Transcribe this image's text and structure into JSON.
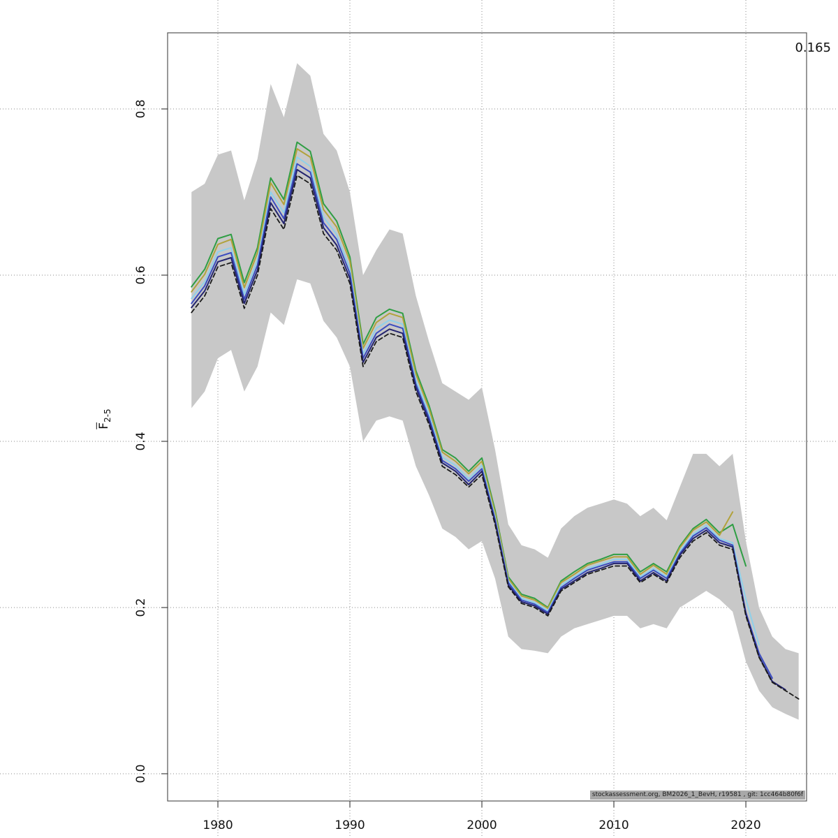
{
  "chart_data": {
    "type": "line",
    "title": "",
    "ylabel_main": "F",
    "ylabel_sub": "2-5",
    "annotation": "0.165",
    "footer": "stockassessment.org, BM2026_1_BevH, r19581 , git: 1cc464b80f6f",
    "grid": true,
    "xlim": [
      1976.19,
      2024.6
    ],
    "ylim": [
      -0.0328,
      0.8916
    ],
    "xticks": [
      1980,
      1990,
      2000,
      2010,
      2020
    ],
    "xtick_labels": [
      "1980",
      "1990",
      "2000",
      "2010",
      "2020"
    ],
    "yticks": [
      0.0,
      0.2,
      0.4,
      0.6,
      0.8
    ],
    "ytick_labels": [
      "0.0",
      "0.2",
      "0.4",
      "0.6",
      "0.8"
    ],
    "x_start_year": 1978,
    "band": {
      "color": "#c8c8c8",
      "start_year": 1978,
      "upper": [
        0.7,
        0.71,
        0.745,
        0.75,
        0.69,
        0.74,
        0.83,
        0.79,
        0.855,
        0.84,
        0.77,
        0.75,
        0.7,
        0.6,
        0.63,
        0.655,
        0.65,
        0.575,
        0.52,
        0.47,
        0.46,
        0.45,
        0.465,
        0.39,
        0.3,
        0.275,
        0.27,
        0.26,
        0.295,
        0.31,
        0.32,
        0.325,
        0.33,
        0.325,
        0.31,
        0.32,
        0.305,
        0.345,
        0.385,
        0.385,
        0.37,
        0.385,
        0.28,
        0.2,
        0.165,
        0.15,
        0.145
      ],
      "lower": [
        0.44,
        0.46,
        0.5,
        0.51,
        0.46,
        0.49,
        0.555,
        0.54,
        0.595,
        0.59,
        0.545,
        0.525,
        0.49,
        0.4,
        0.425,
        0.43,
        0.425,
        0.37,
        0.335,
        0.295,
        0.285,
        0.27,
        0.28,
        0.235,
        0.165,
        0.15,
        0.148,
        0.145,
        0.165,
        0.175,
        0.18,
        0.185,
        0.19,
        0.19,
        0.175,
        0.18,
        0.175,
        0.2,
        0.21,
        0.22,
        0.21,
        0.195,
        0.135,
        0.1,
        0.08,
        0.072,
        0.065
      ]
    },
    "series": [
      {
        "name": "retro-green",
        "color": "#2f9e44",
        "width": 2,
        "dash": "",
        "start_year": 1978,
        "values": [
          0.586,
          0.607,
          0.644,
          0.649,
          0.591,
          0.633,
          0.717,
          0.691,
          0.76,
          0.749,
          0.686,
          0.665,
          0.622,
          0.517,
          0.549,
          0.559,
          0.554,
          0.485,
          0.443,
          0.39,
          0.38,
          0.364,
          0.38,
          0.317,
          0.237,
          0.216,
          0.211,
          0.2,
          0.232,
          0.243,
          0.253,
          0.258,
          0.264,
          0.264,
          0.243,
          0.253,
          0.243,
          0.274,
          0.295,
          0.306,
          0.29,
          0.3,
          0.25
        ]
      },
      {
        "name": "retro-olive",
        "color": "#b2a23c",
        "width": 2,
        "dash": "",
        "start_year": 1978,
        "values": [
          0.58,
          0.601,
          0.637,
          0.643,
          0.585,
          0.627,
          0.711,
          0.685,
          0.752,
          0.742,
          0.679,
          0.658,
          0.617,
          0.512,
          0.543,
          0.554,
          0.549,
          0.481,
          0.439,
          0.387,
          0.376,
          0.361,
          0.376,
          0.314,
          0.235,
          0.214,
          0.209,
          0.199,
          0.23,
          0.24,
          0.251,
          0.256,
          0.261,
          0.261,
          0.24,
          0.251,
          0.24,
          0.272,
          0.293,
          0.303,
          0.287,
          0.315
        ]
      },
      {
        "name": "retro-lightblue",
        "color": "#8fd0ea",
        "width": 2,
        "dash": "",
        "start_year": 1978,
        "values": [
          0.572,
          0.592,
          0.628,
          0.633,
          0.577,
          0.618,
          0.7,
          0.675,
          0.742,
          0.731,
          0.67,
          0.649,
          0.608,
          0.505,
          0.536,
          0.546,
          0.541,
          0.474,
          0.433,
          0.381,
          0.371,
          0.355,
          0.371,
          0.309,
          0.232,
          0.211,
          0.206,
          0.196,
          0.227,
          0.237,
          0.247,
          0.252,
          0.258,
          0.258,
          0.237,
          0.247,
          0.237,
          0.268,
          0.288,
          0.299,
          0.283,
          0.278,
          0.21,
          0.155
        ]
      },
      {
        "name": "retro-blue",
        "color": "#3b4cc0",
        "width": 2,
        "dash": "",
        "start_year": 1978,
        "values": [
          0.566,
          0.587,
          0.622,
          0.627,
          0.571,
          0.612,
          0.694,
          0.668,
          0.734,
          0.724,
          0.663,
          0.643,
          0.602,
          0.5,
          0.53,
          0.541,
          0.536,
          0.469,
          0.428,
          0.377,
          0.367,
          0.352,
          0.367,
          0.306,
          0.23,
          0.209,
          0.204,
          0.194,
          0.224,
          0.235,
          0.245,
          0.25,
          0.255,
          0.255,
          0.235,
          0.245,
          0.235,
          0.265,
          0.286,
          0.296,
          0.281,
          0.275,
          0.194,
          0.145,
          0.115
        ]
      },
      {
        "name": "retro-navy",
        "color": "#24246e",
        "width": 2,
        "dash": "",
        "start_year": 1978,
        "values": [
          0.561,
          0.581,
          0.616,
          0.621,
          0.566,
          0.606,
          0.687,
          0.662,
          0.727,
          0.717,
          0.657,
          0.636,
          0.596,
          0.495,
          0.525,
          0.535,
          0.53,
          0.465,
          0.424,
          0.374,
          0.364,
          0.348,
          0.364,
          0.303,
          0.227,
          0.207,
          0.202,
          0.192,
          0.222,
          0.232,
          0.242,
          0.247,
          0.253,
          0.253,
          0.232,
          0.242,
          0.232,
          0.263,
          0.283,
          0.293,
          0.278,
          0.273,
          0.192,
          0.141,
          0.111,
          0.101
        ]
      },
      {
        "name": "base-run",
        "color": "#1a1a1a",
        "width": 1.8,
        "dash": "6 4",
        "start_year": 1978,
        "values": [
          0.555,
          0.575,
          0.61,
          0.615,
          0.56,
          0.6,
          0.68,
          0.655,
          0.72,
          0.71,
          0.65,
          0.63,
          0.59,
          0.49,
          0.52,
          0.53,
          0.525,
          0.46,
          0.42,
          0.37,
          0.36,
          0.345,
          0.36,
          0.3,
          0.225,
          0.205,
          0.2,
          0.19,
          0.22,
          0.23,
          0.24,
          0.245,
          0.25,
          0.25,
          0.23,
          0.24,
          0.23,
          0.26,
          0.28,
          0.29,
          0.275,
          0.27,
          0.19,
          0.14,
          0.11,
          0.1,
          0.09
        ]
      }
    ],
    "grid_color": "#8a8a8a",
    "border_color": "#555555",
    "tick_color": "#444444",
    "label_color": "#111111"
  }
}
